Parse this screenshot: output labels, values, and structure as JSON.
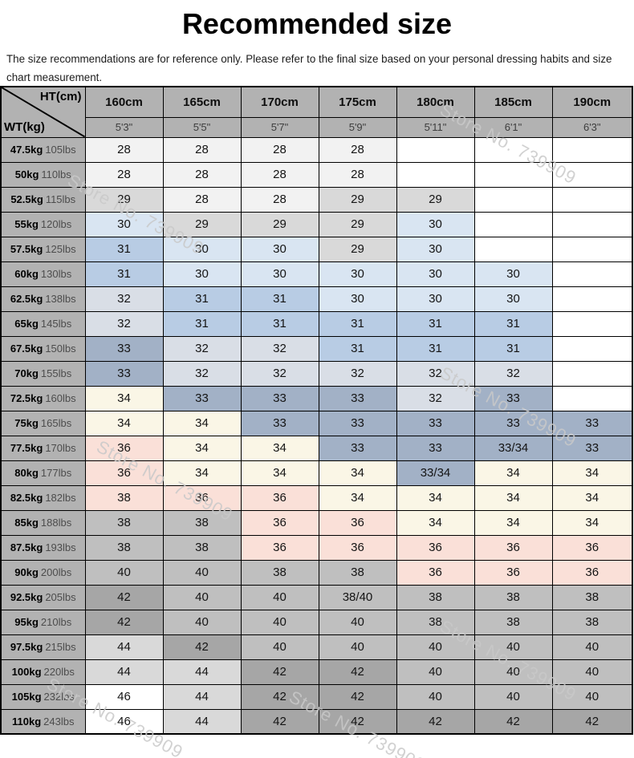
{
  "page": {
    "title": "Recommended size",
    "subtitle": "The size recommendations are for reference only. Please refer to the final size based on your personal dressing habits and size chart measurement."
  },
  "watermark_text": "Store No. 739909",
  "colors": {
    "header": "#b2b2b2",
    "border": "#000000",
    "w": "#ffffff",
    "f2": "#f2f2f2",
    "d9": "#d9d9d9",
    "bf": "#bfbfbf",
    "a6": "#a6a6a6",
    "lb": "#d9e5f2",
    "mb": "#b8cce4",
    "gb": "#d9dee6",
    "bg": "#a2b1c6",
    "cr": "#faf6e6",
    "pk": "#fae0d8"
  },
  "chart_data": {
    "type": "table",
    "title": "Recommended size",
    "corner": {
      "top": "HT(cm)",
      "bottom": "WT(kg)"
    },
    "height_cm": [
      "160cm",
      "165cm",
      "170cm",
      "175cm",
      "180cm",
      "185cm",
      "190cm"
    ],
    "height_ft": [
      "5'3\"",
      "5'5\"",
      "5'7\"",
      "5'9\"",
      "5'11\"",
      "6'1\"",
      "6'3\""
    ],
    "rows": [
      {
        "kg": "47.5kg",
        "lbs": "105lbs",
        "cells": [
          {
            "v": "28",
            "bg": "f2"
          },
          {
            "v": "28",
            "bg": "f2"
          },
          {
            "v": "28",
            "bg": "f2"
          },
          {
            "v": "28",
            "bg": "f2"
          },
          {
            "v": "",
            "bg": "w"
          },
          {
            "v": "",
            "bg": "w"
          },
          {
            "v": "",
            "bg": "w"
          }
        ]
      },
      {
        "kg": "50kg",
        "lbs": "110lbs",
        "cells": [
          {
            "v": "28",
            "bg": "f2"
          },
          {
            "v": "28",
            "bg": "f2"
          },
          {
            "v": "28",
            "bg": "f2"
          },
          {
            "v": "28",
            "bg": "f2"
          },
          {
            "v": "",
            "bg": "w"
          },
          {
            "v": "",
            "bg": "w"
          },
          {
            "v": "",
            "bg": "w"
          }
        ]
      },
      {
        "kg": "52.5kg",
        "lbs": "115lbs",
        "cells": [
          {
            "v": "29",
            "bg": "d9"
          },
          {
            "v": "28",
            "bg": "f2"
          },
          {
            "v": "28",
            "bg": "f2"
          },
          {
            "v": "29",
            "bg": "d9"
          },
          {
            "v": "29",
            "bg": "d9"
          },
          {
            "v": "",
            "bg": "w"
          },
          {
            "v": "",
            "bg": "w"
          }
        ]
      },
      {
        "kg": "55kg",
        "lbs": "120lbs",
        "cells": [
          {
            "v": "30",
            "bg": "lb"
          },
          {
            "v": "29",
            "bg": "d9"
          },
          {
            "v": "29",
            "bg": "d9"
          },
          {
            "v": "29",
            "bg": "d9"
          },
          {
            "v": "30",
            "bg": "lb"
          },
          {
            "v": "",
            "bg": "w"
          },
          {
            "v": "",
            "bg": "w"
          }
        ]
      },
      {
        "kg": "57.5kg",
        "lbs": "125lbs",
        "cells": [
          {
            "v": "31",
            "bg": "mb"
          },
          {
            "v": "30",
            "bg": "lb"
          },
          {
            "v": "30",
            "bg": "lb"
          },
          {
            "v": "29",
            "bg": "d9"
          },
          {
            "v": "30",
            "bg": "lb"
          },
          {
            "v": "",
            "bg": "w"
          },
          {
            "v": "",
            "bg": "w"
          }
        ]
      },
      {
        "kg": "60kg",
        "lbs": "130lbs",
        "cells": [
          {
            "v": "31",
            "bg": "mb"
          },
          {
            "v": "30",
            "bg": "lb"
          },
          {
            "v": "30",
            "bg": "lb"
          },
          {
            "v": "30",
            "bg": "lb"
          },
          {
            "v": "30",
            "bg": "lb"
          },
          {
            "v": "30",
            "bg": "lb"
          },
          {
            "v": "",
            "bg": "w"
          }
        ]
      },
      {
        "kg": "62.5kg",
        "lbs": "138lbs",
        "cells": [
          {
            "v": "32",
            "bg": "gb"
          },
          {
            "v": "31",
            "bg": "mb"
          },
          {
            "v": "31",
            "bg": "mb"
          },
          {
            "v": "30",
            "bg": "lb"
          },
          {
            "v": "30",
            "bg": "lb"
          },
          {
            "v": "30",
            "bg": "lb"
          },
          {
            "v": "",
            "bg": "w"
          }
        ]
      },
      {
        "kg": "65kg",
        "lbs": "145lbs",
        "cells": [
          {
            "v": "32",
            "bg": "gb"
          },
          {
            "v": "31",
            "bg": "mb"
          },
          {
            "v": "31",
            "bg": "mb"
          },
          {
            "v": "31",
            "bg": "mb"
          },
          {
            "v": "31",
            "bg": "mb"
          },
          {
            "v": "31",
            "bg": "mb"
          },
          {
            "v": "",
            "bg": "w"
          }
        ]
      },
      {
        "kg": "67.5kg",
        "lbs": "150lbs",
        "cells": [
          {
            "v": "33",
            "bg": "bg"
          },
          {
            "v": "32",
            "bg": "gb"
          },
          {
            "v": "32",
            "bg": "gb"
          },
          {
            "v": "31",
            "bg": "mb"
          },
          {
            "v": "31",
            "bg": "mb"
          },
          {
            "v": "31",
            "bg": "mb"
          },
          {
            "v": "",
            "bg": "w"
          }
        ]
      },
      {
        "kg": "70kg",
        "lbs": "155lbs",
        "cells": [
          {
            "v": "33",
            "bg": "bg"
          },
          {
            "v": "32",
            "bg": "gb"
          },
          {
            "v": "32",
            "bg": "gb"
          },
          {
            "v": "32",
            "bg": "gb"
          },
          {
            "v": "32",
            "bg": "gb"
          },
          {
            "v": "32",
            "bg": "gb"
          },
          {
            "v": "",
            "bg": "w"
          }
        ]
      },
      {
        "kg": "72.5kg",
        "lbs": "160lbs",
        "cells": [
          {
            "v": "34",
            "bg": "cr"
          },
          {
            "v": "33",
            "bg": "bg"
          },
          {
            "v": "33",
            "bg": "bg"
          },
          {
            "v": "33",
            "bg": "bg"
          },
          {
            "v": "32",
            "bg": "gb"
          },
          {
            "v": "33",
            "bg": "bg"
          },
          {
            "v": "",
            "bg": "w"
          }
        ]
      },
      {
        "kg": "75kg",
        "lbs": "165lbs",
        "cells": [
          {
            "v": "34",
            "bg": "cr"
          },
          {
            "v": "34",
            "bg": "cr"
          },
          {
            "v": "33",
            "bg": "bg"
          },
          {
            "v": "33",
            "bg": "bg"
          },
          {
            "v": "33",
            "bg": "bg"
          },
          {
            "v": "33",
            "bg": "bg"
          },
          {
            "v": "33",
            "bg": "bg"
          }
        ]
      },
      {
        "kg": "77.5kg",
        "lbs": "170lbs",
        "cells": [
          {
            "v": "36",
            "bg": "pk"
          },
          {
            "v": "34",
            "bg": "cr"
          },
          {
            "v": "34",
            "bg": "cr"
          },
          {
            "v": "33",
            "bg": "bg"
          },
          {
            "v": "33",
            "bg": "bg"
          },
          {
            "v": "33/34",
            "bg": "bg"
          },
          {
            "v": "33",
            "bg": "bg"
          }
        ]
      },
      {
        "kg": "80kg",
        "lbs": "177lbs",
        "cells": [
          {
            "v": "36",
            "bg": "pk"
          },
          {
            "v": "34",
            "bg": "cr"
          },
          {
            "v": "34",
            "bg": "cr"
          },
          {
            "v": "34",
            "bg": "cr"
          },
          {
            "v": "33/34",
            "bg": "bg"
          },
          {
            "v": "34",
            "bg": "cr"
          },
          {
            "v": "34",
            "bg": "cr"
          }
        ]
      },
      {
        "kg": "82.5kg",
        "lbs": "182lbs",
        "cells": [
          {
            "v": "38",
            "bg": "pk"
          },
          {
            "v": "36",
            "bg": "pk"
          },
          {
            "v": "36",
            "bg": "pk"
          },
          {
            "v": "34",
            "bg": "cr"
          },
          {
            "v": "34",
            "bg": "cr"
          },
          {
            "v": "34",
            "bg": "cr"
          },
          {
            "v": "34",
            "bg": "cr"
          }
        ]
      },
      {
        "kg": "85kg",
        "lbs": "188lbs",
        "cells": [
          {
            "v": "38",
            "bg": "bf"
          },
          {
            "v": "38",
            "bg": "bf"
          },
          {
            "v": "36",
            "bg": "pk"
          },
          {
            "v": "36",
            "bg": "pk"
          },
          {
            "v": "34",
            "bg": "cr"
          },
          {
            "v": "34",
            "bg": "cr"
          },
          {
            "v": "34",
            "bg": "cr"
          }
        ]
      },
      {
        "kg": "87.5kg",
        "lbs": "193lbs",
        "cells": [
          {
            "v": "38",
            "bg": "bf"
          },
          {
            "v": "38",
            "bg": "bf"
          },
          {
            "v": "36",
            "bg": "pk"
          },
          {
            "v": "36",
            "bg": "pk"
          },
          {
            "v": "36",
            "bg": "pk"
          },
          {
            "v": "36",
            "bg": "pk"
          },
          {
            "v": "36",
            "bg": "pk"
          }
        ]
      },
      {
        "kg": "90kg",
        "lbs": "200lbs",
        "cells": [
          {
            "v": "40",
            "bg": "bf"
          },
          {
            "v": "40",
            "bg": "bf"
          },
          {
            "v": "38",
            "bg": "bf"
          },
          {
            "v": "38",
            "bg": "bf"
          },
          {
            "v": "36",
            "bg": "pk"
          },
          {
            "v": "36",
            "bg": "pk"
          },
          {
            "v": "36",
            "bg": "pk"
          }
        ]
      },
      {
        "kg": "92.5kg",
        "lbs": "205lbs",
        "cells": [
          {
            "v": "42",
            "bg": "a6"
          },
          {
            "v": "40",
            "bg": "bf"
          },
          {
            "v": "40",
            "bg": "bf"
          },
          {
            "v": "38/40",
            "bg": "bf"
          },
          {
            "v": "38",
            "bg": "bf"
          },
          {
            "v": "38",
            "bg": "bf"
          },
          {
            "v": "38",
            "bg": "bf"
          }
        ]
      },
      {
        "kg": "95kg",
        "lbs": "210lbs",
        "cells": [
          {
            "v": "42",
            "bg": "a6"
          },
          {
            "v": "40",
            "bg": "bf"
          },
          {
            "v": "40",
            "bg": "bf"
          },
          {
            "v": "40",
            "bg": "bf"
          },
          {
            "v": "38",
            "bg": "bf"
          },
          {
            "v": "38",
            "bg": "bf"
          },
          {
            "v": "38",
            "bg": "bf"
          }
        ]
      },
      {
        "kg": "97.5kg",
        "lbs": "215lbs",
        "cells": [
          {
            "v": "44",
            "bg": "d9"
          },
          {
            "v": "42",
            "bg": "a6"
          },
          {
            "v": "40",
            "bg": "bf"
          },
          {
            "v": "40",
            "bg": "bf"
          },
          {
            "v": "40",
            "bg": "bf"
          },
          {
            "v": "40",
            "bg": "bf"
          },
          {
            "v": "40",
            "bg": "bf"
          }
        ]
      },
      {
        "kg": "100kg",
        "lbs": "220lbs",
        "cells": [
          {
            "v": "44",
            "bg": "d9"
          },
          {
            "v": "44",
            "bg": "d9"
          },
          {
            "v": "42",
            "bg": "a6"
          },
          {
            "v": "42",
            "bg": "a6"
          },
          {
            "v": "40",
            "bg": "bf"
          },
          {
            "v": "40",
            "bg": "bf"
          },
          {
            "v": "40",
            "bg": "bf"
          }
        ]
      },
      {
        "kg": "105kg",
        "lbs": "232lbs",
        "cells": [
          {
            "v": "46",
            "bg": "w"
          },
          {
            "v": "44",
            "bg": "d9"
          },
          {
            "v": "42",
            "bg": "a6"
          },
          {
            "v": "42",
            "bg": "a6"
          },
          {
            "v": "40",
            "bg": "bf"
          },
          {
            "v": "40",
            "bg": "bf"
          },
          {
            "v": "40",
            "bg": "bf"
          }
        ]
      },
      {
        "kg": "110kg",
        "lbs": "243lbs",
        "cells": [
          {
            "v": "46",
            "bg": "w"
          },
          {
            "v": "44",
            "bg": "d9"
          },
          {
            "v": "42",
            "bg": "a6"
          },
          {
            "v": "42",
            "bg": "a6"
          },
          {
            "v": "42",
            "bg": "a6"
          },
          {
            "v": "42",
            "bg": "a6"
          },
          {
            "v": "42",
            "bg": "a6"
          }
        ]
      }
    ]
  }
}
